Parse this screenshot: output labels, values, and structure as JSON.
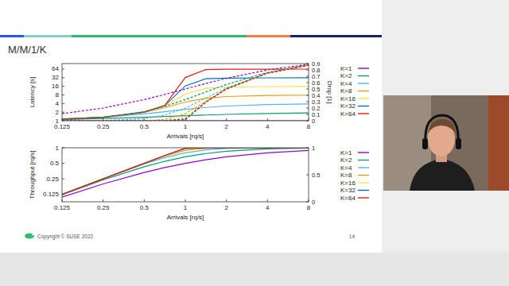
{
  "slide": {
    "title": "M/M/1/K",
    "footer": "Copyright © SUSE 2022",
    "page": 14
  },
  "chart_data": [
    {
      "type": "line",
      "xlabel": "Arrivals [rq/s]",
      "ylabel": "Latency [s]",
      "y2label": "Drop [1]",
      "log": true,
      "grid": false,
      "legend": "right",
      "x": [
        0.125,
        0.25,
        0.5,
        0.707,
        1,
        1.414,
        2,
        4,
        8
      ],
      "xlim": [
        0.125,
        8
      ],
      "xticks": [
        0.125,
        0.25,
        0.5,
        1,
        2,
        4,
        8
      ],
      "ylim": [
        1,
        100
      ],
      "yticks": [
        1,
        2,
        4,
        8,
        16,
        32,
        64
      ],
      "y2lim": [
        0,
        0.9
      ],
      "y2ticks": [
        0,
        0.1,
        0.2,
        0.3,
        0.4,
        0.5,
        0.6,
        0.7,
        0.8,
        0.9
      ],
      "series": [
        {
          "name": "K=1",
          "color": "#9400d3",
          "line_style": "solid",
          "values": [
            1,
            1,
            1,
            1,
            1,
            1,
            1,
            1,
            1
          ]
        },
        {
          "name": "K=2",
          "color": "#009e73",
          "line_style": "solid",
          "values": [
            1.11,
            1.2,
            1.33,
            1.41,
            1.5,
            1.59,
            1.67,
            1.8,
            1.89
          ]
        },
        {
          "name": "K=4",
          "color": "#56b4e9",
          "line_style": "solid",
          "values": [
            1.14,
            1.32,
            1.73,
            2.08,
            2.5,
            2.92,
            3.27,
            3.68,
            3.86
          ]
        },
        {
          "name": "K=8",
          "color": "#e69f00",
          "line_style": "solid",
          "values": [
            1.14,
            1.33,
            1.97,
            2.88,
            4.5,
            6.12,
            7.03,
            7.67,
            7.86
          ]
        },
        {
          "name": "K=16",
          "color": "#f0e442",
          "line_style": "solid",
          "values": [
            1.14,
            1.33,
            2.0,
            3.35,
            8.5,
            13.65,
            15.0,
            15.67,
            15.86
          ]
        },
        {
          "name": "K=32",
          "color": "#0072b2",
          "line_style": "solid",
          "values": [
            1.14,
            1.33,
            2.0,
            3.41,
            16.5,
            29.59,
            31.0,
            31.67,
            31.86
          ]
        },
        {
          "name": "K=64",
          "color": "#e51e10",
          "line_style": "solid",
          "values": [
            1.14,
            1.33,
            2.0,
            3.41,
            32.5,
            61.59,
            63.0,
            63.67,
            63.86
          ]
        },
        {
          "name": "K=1",
          "color": "#9400d3",
          "line_style": "dashed",
          "axis": "y2",
          "values": [
            0.111,
            0.2,
            0.333,
            0.414,
            0.5,
            0.586,
            0.667,
            0.8,
            0.889
          ]
        },
        {
          "name": "K=2",
          "color": "#009e73",
          "line_style": "dashed",
          "axis": "y2",
          "values": [
            0.014,
            0.048,
            0.143,
            0.227,
            0.333,
            0.453,
            0.571,
            0.762,
            0.877
          ]
        },
        {
          "name": "K=4",
          "color": "#56b4e9",
          "line_style": "dashed",
          "axis": "y2",
          "values": [
            0.0002,
            0.003,
            0.032,
            0.089,
            0.2,
            0.356,
            0.516,
            0.751,
            0.875
          ]
        },
        {
          "name": "K=8",
          "color": "#e69f00",
          "line_style": "dashed",
          "axis": "y2",
          "values": [
            0,
            0,
            0.002,
            0.019,
            0.111,
            0.306,
            0.501,
            0.75,
            0.875
          ]
        },
        {
          "name": "K=16",
          "color": "#f0e442",
          "line_style": "dashed",
          "axis": "y2",
          "values": [
            0,
            0,
            0,
            0.001,
            0.059,
            0.294,
            0.5,
            0.75,
            0.875
          ]
        },
        {
          "name": "K=32",
          "color": "#0072b2",
          "line_style": "dashed",
          "axis": "y2",
          "values": [
            0,
            0,
            0,
            0,
            0.03,
            0.293,
            0.5,
            0.75,
            0.875
          ]
        },
        {
          "name": "K=64",
          "color": "#e51e10",
          "line_style": "dashed",
          "axis": "y2",
          "values": [
            0,
            0,
            0,
            0,
            0.015,
            0.293,
            0.5,
            0.75,
            0.875
          ]
        }
      ]
    },
    {
      "type": "line",
      "xlabel": "Arrivals [rq/s]",
      "ylabel": "Throughput [rq/s]",
      "log": true,
      "grid": false,
      "legend": "right",
      "x": [
        0.125,
        0.25,
        0.5,
        0.707,
        1,
        1.414,
        2,
        4,
        8
      ],
      "xlim": [
        0.125,
        8
      ],
      "xticks": [
        0.125,
        0.25,
        0.5,
        1,
        2,
        4,
        8
      ],
      "ylim": [
        0.09,
        1
      ],
      "yticks": [
        0.125,
        0.25,
        0.5,
        1
      ],
      "y2lim": [
        0,
        1
      ],
      "y2ticks": [
        0,
        0.5,
        1
      ],
      "series": [
        {
          "name": "K=1",
          "color": "#9400d3",
          "line_style": "solid",
          "values": [
            0.111,
            0.2,
            0.333,
            0.414,
            0.5,
            0.586,
            0.667,
            0.8,
            0.889
          ]
        },
        {
          "name": "K=2",
          "color": "#009e73",
          "line_style": "solid",
          "values": [
            0.123,
            0.238,
            0.429,
            0.547,
            0.667,
            0.773,
            0.857,
            0.952,
            0.986
          ]
        },
        {
          "name": "K=4",
          "color": "#56b4e9",
          "line_style": "solid",
          "values": [
            0.125,
            0.249,
            0.484,
            0.644,
            0.8,
            0.911,
            0.968,
            0.997,
            1.0
          ]
        },
        {
          "name": "K=8",
          "color": "#e69f00",
          "line_style": "solid",
          "values": [
            0.125,
            0.25,
            0.499,
            0.694,
            0.889,
            0.981,
            0.998,
            1.0,
            1.0
          ]
        },
        {
          "name": "K=16",
          "color": "#f0e442",
          "line_style": "solid",
          "values": [
            0.125,
            0.25,
            0.5,
            0.706,
            0.941,
            0.999,
            1.0,
            1.0,
            1.0
          ]
        },
        {
          "name": "K=32",
          "color": "#0072b2",
          "line_style": "solid",
          "values": [
            0.125,
            0.25,
            0.5,
            0.707,
            0.97,
            1.0,
            1.0,
            1.0,
            1.0
          ]
        },
        {
          "name": "K=64",
          "color": "#e51e10",
          "line_style": "solid",
          "values": [
            0.125,
            0.25,
            0.5,
            0.707,
            0.985,
            1.0,
            1.0,
            1.0,
            1.0
          ]
        }
      ]
    }
  ]
}
